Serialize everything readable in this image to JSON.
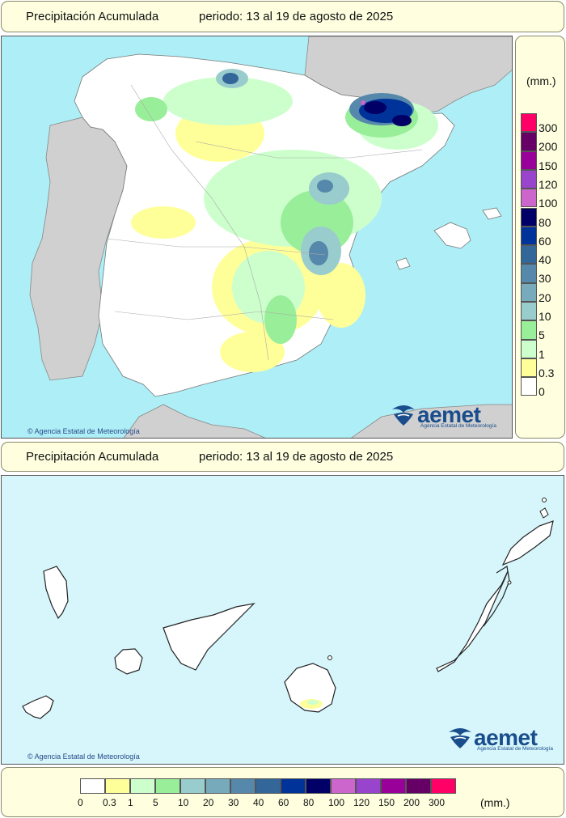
{
  "banner_top": {
    "title": "Precipitación Acumulada",
    "period": "periodo: 13 al 19 de agosto de 2025"
  },
  "banner_mid": {
    "title": "Precipitación Acumulada",
    "period": "periodo: 13 al 19 de agosto de 2025"
  },
  "unit": "(mm.)",
  "legend": {
    "thresholds": [
      "0",
      "0.3",
      "1",
      "5",
      "10",
      "20",
      "30",
      "40",
      "60",
      "80",
      "100",
      "120",
      "150",
      "200",
      "300"
    ],
    "colors": [
      "#ffffff",
      "#ffff99",
      "#ccffcc",
      "#99ee99",
      "#99cccc",
      "#77aabb",
      "#5588aa",
      "#336699",
      "#003399",
      "#000066",
      "#cc66cc",
      "#9944cc",
      "#990099",
      "#660066",
      "#ff0066"
    ]
  },
  "copyright": "Agencia Estatal de Meteorología",
  "logo": {
    "word": "aemet",
    "sub": "Agencia Estatal de Meteorología"
  },
  "colors": {
    "sea": "#aeeef6",
    "land_outside": "#d0d0d0",
    "canarias_sea": "#d6f6fb"
  }
}
